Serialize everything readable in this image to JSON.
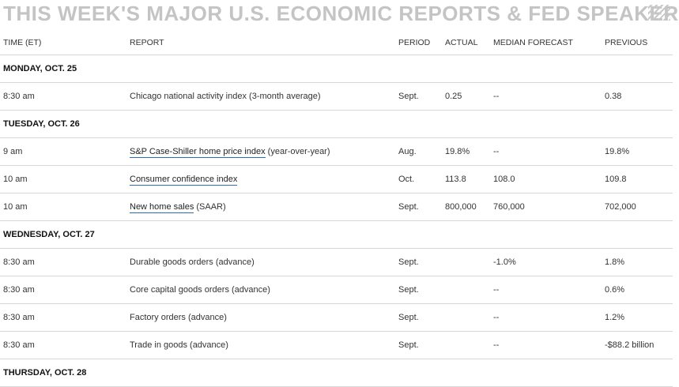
{
  "title": "THIS WEEK'S MAJOR U.S. ECONOMIC REPORTS & FED SPEAKERS",
  "columns": {
    "time": "TIME (ET)",
    "report": "REPORT",
    "period": "PERIOD",
    "actual": "ACTUAL",
    "median": "MEDIAN FORECAST",
    "previous": "PREVIOUS"
  },
  "sections": [
    {
      "day": "MONDAY, OCT. 25",
      "rows": [
        {
          "time": "8:30 am",
          "report_link": "",
          "report_rest": "Chicago national activity index (3-month average)",
          "period": "Sept.",
          "actual": "0.25",
          "median": "--",
          "previous": "0.38"
        }
      ]
    },
    {
      "day": "TUESDAY, OCT. 26",
      "rows": [
        {
          "time": "9 am",
          "report_link": "S&P Case-Shiller home price index",
          "report_rest": " (year-over-year)",
          "period": "Aug.",
          "actual": "19.8%",
          "median": "--",
          "previous": "19.8%"
        },
        {
          "time": "10 am",
          "report_link": "Consumer confidence index",
          "report_rest": "",
          "period": "Oct.",
          "actual": "113.8",
          "median": "108.0",
          "previous": "109.8"
        },
        {
          "time": "10 am",
          "report_link": "New home sales",
          "report_rest": " (SAAR)",
          "period": "Sept.",
          "actual": "800,000",
          "median": "760,000",
          "previous": "702,000"
        }
      ]
    },
    {
      "day": "WEDNESDAY, OCT. 27",
      "rows": [
        {
          "time": "8:30 am",
          "report_link": "",
          "report_rest": "Durable goods orders (advance)",
          "period": "Sept.",
          "actual": "",
          "median": "-1.0%",
          "previous": "1.8%"
        },
        {
          "time": "8:30 am",
          "report_link": "",
          "report_rest": "Core capital goods orders (advance)",
          "period": "Sept.",
          "actual": "",
          "median": "--",
          "previous": "0.6%"
        },
        {
          "time": "8:30 am",
          "report_link": "",
          "report_rest": "Factory orders (advance)",
          "period": "Sept.",
          "actual": "",
          "median": "--",
          "previous": "1.2%"
        },
        {
          "time": "8:30 am",
          "report_link": "",
          "report_rest": "Trade in goods (advance)",
          "period": "Sept.",
          "actual": "",
          "median": "--",
          "previous": "-$88.2 billion"
        }
      ]
    },
    {
      "day": "THURSDAY, OCT. 28",
      "rows": []
    }
  ]
}
